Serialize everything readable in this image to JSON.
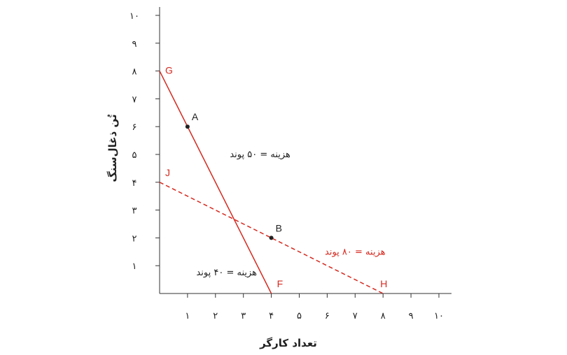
{
  "chart_data": {
    "type": "line",
    "xlabel": "تعداد کارگر",
    "ylabel": "تُن ذغال‌سنگ",
    "xlim": [
      0,
      10
    ],
    "ylim": [
      0,
      10
    ],
    "x_ticks": [
      {
        "value": 1,
        "label": "۱"
      },
      {
        "value": 2,
        "label": "۲"
      },
      {
        "value": 3,
        "label": "۳"
      },
      {
        "value": 4,
        "label": "۴"
      },
      {
        "value": 5,
        "label": "۵"
      },
      {
        "value": 6,
        "label": "۶"
      },
      {
        "value": 7,
        "label": "۷"
      },
      {
        "value": 8,
        "label": "۸"
      },
      {
        "value": 9,
        "label": "۹"
      },
      {
        "value": 10,
        "label": "۱۰"
      }
    ],
    "y_ticks": [
      {
        "value": 1,
        "label": "۱"
      },
      {
        "value": 2,
        "label": "۲"
      },
      {
        "value": 3,
        "label": "۳"
      },
      {
        "value": 4,
        "label": "۴"
      },
      {
        "value": 5,
        "label": "۵"
      },
      {
        "value": 6,
        "label": "۶"
      },
      {
        "value": 7,
        "label": "۷"
      },
      {
        "value": 8,
        "label": "۸"
      },
      {
        "value": 9,
        "label": "۹"
      },
      {
        "value": 10,
        "label": "۱۰"
      }
    ],
    "series": [
      {
        "style": "solid",
        "color": "#d42a20",
        "points": [
          [
            0,
            8
          ],
          [
            4,
            0
          ]
        ],
        "start_label": "G",
        "end_label": "F"
      },
      {
        "style": "dashed",
        "color": "#d42a20",
        "points": [
          [
            0,
            4
          ],
          [
            8,
            0
          ]
        ],
        "start_label": "J",
        "end_label": "H"
      }
    ],
    "points": [
      {
        "label": "A",
        "x": 1,
        "y": 6
      },
      {
        "label": "B",
        "x": 4,
        "y": 2
      }
    ],
    "annotations": [
      {
        "text": "هزینه = ۵۰ پوند",
        "x": 3.6,
        "y": 5,
        "color": "#222222"
      },
      {
        "text": "هزینه = ۸۰ پوند",
        "x": 7,
        "y": 1.5,
        "color": "#d42a20"
      },
      {
        "text": "هزینه = ۴۰ پوند",
        "x": 2.4,
        "y": 0.75,
        "color": "#222222"
      }
    ]
  }
}
